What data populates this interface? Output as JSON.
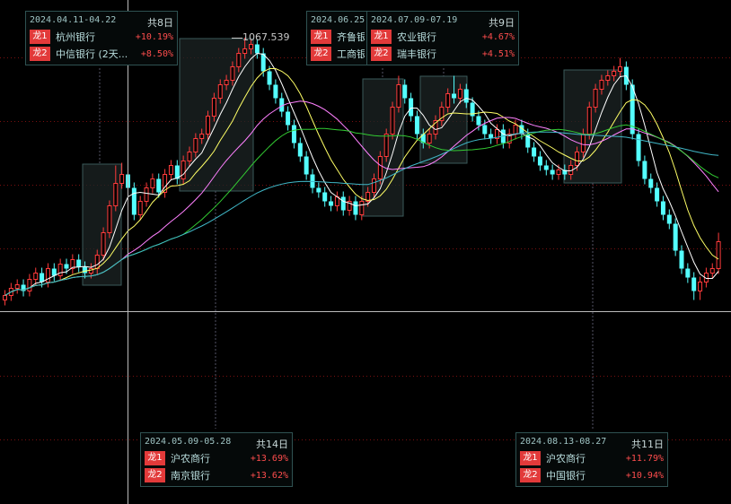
{
  "chart_data": {
    "type": "candlestick",
    "title": "",
    "colors": {
      "up": "#ff3b3b",
      "down": "#54ffff",
      "background": "#000000",
      "grid": "#7a1010"
    },
    "ma_colors": {
      "ma5": "#ffffff",
      "ma10": "#ffff66",
      "ma20": "#ff80ff",
      "ma30": "#33cc33",
      "ma60": "#40b8c8"
    },
    "grid": true,
    "peak_label": "1067.539",
    "open": [
      775,
      780,
      788,
      792,
      785,
      798,
      805,
      795,
      810,
      802,
      815,
      810,
      820,
      812,
      805,
      810,
      825,
      850,
      880,
      905,
      915,
      900,
      870,
      885,
      900,
      910,
      895,
      915,
      925,
      910,
      930,
      940,
      955,
      960,
      980,
      1000,
      1015,
      1020,
      1035,
      1050,
      1055,
      1060,
      1050,
      1030,
      1015,
      1000,
      985,
      970,
      950,
      935,
      915,
      900,
      895,
      885,
      880,
      890,
      875,
      885,
      870,
      885,
      895,
      910,
      935,
      960,
      990,
      1015,
      1000,
      980,
      960,
      950,
      960,
      975,
      990,
      1005,
      1000,
      1010,
      995,
      980,
      970,
      960,
      955,
      965,
      950,
      960,
      970,
      960,
      945,
      935,
      925,
      920,
      915,
      920,
      915,
      925,
      940,
      960,
      990,
      1010,
      1020,
      1025,
      1030,
      1035,
      1015,
      960,
      930,
      910,
      900,
      885,
      870,
      860,
      830,
      810,
      800,
      785,
      795,
      805,
      810
    ],
    "close": [
      780,
      788,
      792,
      785,
      798,
      805,
      795,
      810,
      802,
      815,
      810,
      820,
      812,
      805,
      810,
      825,
      850,
      880,
      905,
      915,
      900,
      870,
      885,
      900,
      910,
      895,
      915,
      925,
      910,
      930,
      940,
      955,
      960,
      980,
      1000,
      1015,
      1020,
      1035,
      1050,
      1055,
      1060,
      1050,
      1030,
      1015,
      1000,
      985,
      970,
      950,
      935,
      915,
      900,
      895,
      885,
      880,
      890,
      875,
      885,
      870,
      885,
      895,
      910,
      935,
      960,
      990,
      1015,
      1000,
      980,
      960,
      950,
      960,
      975,
      990,
      1005,
      1000,
      1010,
      995,
      980,
      970,
      960,
      955,
      965,
      950,
      960,
      970,
      960,
      945,
      935,
      925,
      920,
      915,
      920,
      915,
      925,
      940,
      960,
      990,
      1010,
      1020,
      1025,
      1030,
      1035,
      1015,
      960,
      930,
      910,
      900,
      885,
      870,
      860,
      830,
      810,
      800,
      785,
      795,
      805,
      810,
      840
    ],
    "high": [
      786,
      794,
      798,
      798,
      804,
      811,
      811,
      816,
      816,
      821,
      821,
      826,
      826,
      818,
      816,
      831,
      856,
      886,
      925,
      928,
      921,
      906,
      891,
      906,
      916,
      916,
      921,
      931,
      931,
      936,
      946,
      961,
      966,
      986,
      1006,
      1021,
      1026,
      1041,
      1056,
      1067.539,
      1066,
      1066,
      1056,
      1036,
      1021,
      1006,
      991,
      976,
      956,
      941,
      921,
      906,
      901,
      891,
      896,
      896,
      891,
      891,
      891,
      901,
      916,
      941,
      966,
      996,
      1025,
      1021,
      1006,
      986,
      966,
      966,
      981,
      996,
      1011,
      1025,
      1016,
      1016,
      1001,
      986,
      976,
      966,
      971,
      971,
      966,
      976,
      976,
      966,
      951,
      941,
      931,
      926,
      926,
      926,
      931,
      946,
      966,
      996,
      1016,
      1026,
      1031,
      1036,
      1045,
      1041,
      1021,
      966,
      936,
      916,
      906,
      891,
      876,
      866,
      836,
      816,
      806,
      801,
      811,
      816,
      850
    ],
    "low": [
      769,
      774,
      782,
      779,
      779,
      792,
      789,
      789,
      796,
      796,
      804,
      804,
      806,
      799,
      799,
      804,
      819,
      844,
      874,
      899,
      894,
      864,
      864,
      879,
      894,
      889,
      889,
      909,
      904,
      904,
      924,
      934,
      949,
      954,
      974,
      994,
      1009,
      1014,
      1029,
      1044,
      1049,
      1044,
      1024,
      1009,
      994,
      979,
      964,
      944,
      929,
      909,
      894,
      889,
      879,
      874,
      874,
      869,
      869,
      864,
      864,
      879,
      889,
      904,
      929,
      954,
      984,
      994,
      974,
      954,
      944,
      944,
      954,
      969,
      984,
      994,
      994,
      989,
      974,
      964,
      954,
      949,
      949,
      944,
      944,
      954,
      954,
      939,
      929,
      919,
      914,
      909,
      909,
      909,
      909,
      919,
      934,
      954,
      984,
      1004,
      1014,
      1019,
      1024,
      1009,
      954,
      924,
      904,
      894,
      879,
      864,
      854,
      824,
      804,
      794,
      775,
      775,
      789,
      799,
      804
    ]
  },
  "labels": [
    {
      "range": "2024.04.11-04.22",
      "days": "共8日",
      "rows": [
        {
          "badge": "龙1",
          "name": "杭州银行",
          "pct": "+10.19%"
        },
        {
          "badge": "龙2",
          "name": "中信银行 (2天...",
          "pct": "+8.50%"
        }
      ]
    },
    {
      "range": "2024.06.25-",
      "days": "",
      "rows": [
        {
          "badge": "龙1",
          "name": "齐鲁银行",
          "pct": ""
        },
        {
          "badge": "龙2",
          "name": "工商银行",
          "pct": ""
        }
      ]
    },
    {
      "range": "2024.07.09-07.19",
      "days": "共9日",
      "rows": [
        {
          "badge": "龙1",
          "name": "农业银行",
          "pct": "+4.67%"
        },
        {
          "badge": "龙2",
          "name": "瑞丰银行",
          "pct": "+4.51%"
        }
      ]
    },
    {
      "range": "2024.05.09-05.28",
      "days": "共14日",
      "rows": [
        {
          "badge": "龙1",
          "name": "沪农商行",
          "pct": "+13.69%"
        },
        {
          "badge": "龙2",
          "name": "南京银行",
          "pct": "+13.62%"
        }
      ]
    },
    {
      "range": "2024.08.13-08.27",
      "days": "共11日",
      "rows": [
        {
          "badge": "龙1",
          "name": "沪农商行",
          "pct": "+11.79%"
        },
        {
          "badge": "龙2",
          "name": "中国银行",
          "pct": "+10.94%"
        }
      ]
    }
  ]
}
